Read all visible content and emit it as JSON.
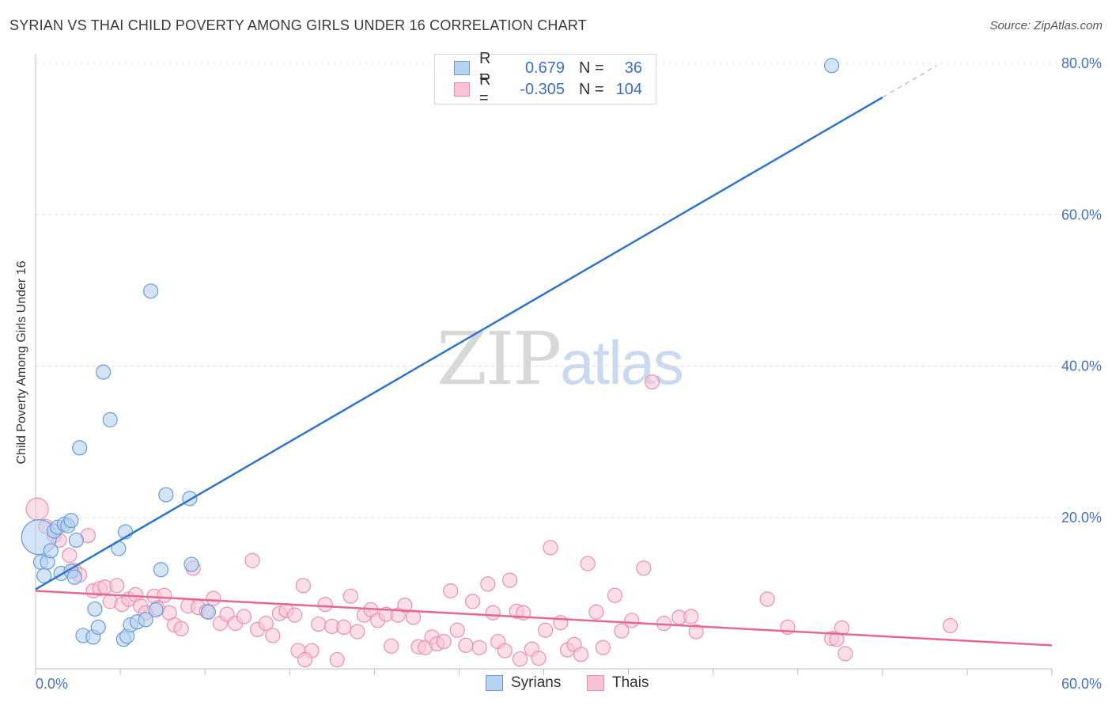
{
  "title": "SYRIAN VS THAI CHILD POVERTY AMONG GIRLS UNDER 16 CORRELATION CHART",
  "source": "Source: ZipAtlas.com",
  "watermark": {
    "part1": "ZIP",
    "part2": "atlas"
  },
  "legend": {
    "series1": {
      "r_label": "R =",
      "r_value": "0.679",
      "n_label": "N =",
      "n_value": "36"
    },
    "series2": {
      "r_label": "R =",
      "r_value": "-0.305",
      "n_label": "N =",
      "n_value": "104"
    }
  },
  "bottom_legend": {
    "series1": "Syrians",
    "series2": "Thais"
  },
  "colors": {
    "syrian_fill": "#b8d2f2",
    "syrian_stroke": "#6a9ad8",
    "syrian_line": "#2e74cf",
    "thai_fill": "#f9c3d5",
    "thai_stroke": "#eb8fb0",
    "thai_line": "#e5698f",
    "tick": "#4472c4",
    "grid": "#e2e2e2"
  },
  "chart_data": {
    "type": "scatter",
    "title": "SYRIAN VS THAI CHILD POVERTY AMONG GIRLS UNDER 16 CORRELATION CHART",
    "xlabel": "",
    "ylabel": "Child Poverty Among Girls Under 16",
    "xlim": [
      0,
      60
    ],
    "ylim": [
      0,
      80
    ],
    "x_tick_labels": [
      "0.0%",
      "60.0%"
    ],
    "y_ticks": [
      20,
      40,
      60,
      80
    ],
    "y_tick_labels": [
      "20.0%",
      "40.0%",
      "60.0%",
      "80.0%"
    ],
    "grid": true,
    "series": [
      {
        "name": "Syrians",
        "r": 0.679,
        "n": 36,
        "trend": {
          "x": [
            0,
            50
          ],
          "y": [
            10.5,
            75.5
          ],
          "dashed_x": [
            50,
            53.2
          ],
          "dashed_y": [
            75.5,
            79.7
          ]
        },
        "points": [
          [
            0.2,
            17.4,
            22
          ],
          [
            0.3,
            14.1,
            10
          ],
          [
            0.5,
            12.3,
            10
          ],
          [
            0.7,
            14.1,
            10
          ],
          [
            0.9,
            15.6,
            10
          ],
          [
            1.1,
            18.2,
            10
          ],
          [
            1.3,
            18.7,
            10
          ],
          [
            1.5,
            12.6,
            10
          ],
          [
            1.7,
            19.1,
            10
          ],
          [
            1.9,
            18.9,
            10
          ],
          [
            2.1,
            19.6,
            10
          ],
          [
            2.1,
            12.9,
            10
          ],
          [
            2.3,
            12.1,
            10
          ],
          [
            2.4,
            17.0,
            10
          ],
          [
            2.6,
            29.2,
            10
          ],
          [
            2.8,
            4.4,
            10
          ],
          [
            3.4,
            4.2,
            10
          ],
          [
            3.5,
            7.9,
            10
          ],
          [
            3.7,
            5.5,
            10
          ],
          [
            4.0,
            39.2,
            10
          ],
          [
            4.4,
            32.9,
            10
          ],
          [
            4.9,
            15.9,
            10
          ],
          [
            5.2,
            3.9,
            10
          ],
          [
            5.3,
            18.1,
            10
          ],
          [
            5.4,
            4.3,
            10
          ],
          [
            5.6,
            5.8,
            10
          ],
          [
            6.0,
            6.2,
            10
          ],
          [
            6.5,
            6.5,
            10
          ],
          [
            6.8,
            49.9,
            10
          ],
          [
            7.1,
            7.8,
            10
          ],
          [
            7.4,
            13.1,
            10
          ],
          [
            7.7,
            23.0,
            10
          ],
          [
            9.1,
            22.5,
            10
          ],
          [
            9.2,
            13.8,
            10
          ],
          [
            10.2,
            7.5,
            10
          ],
          [
            47.0,
            79.7,
            10
          ]
        ]
      },
      {
        "name": "Thais",
        "r": -0.305,
        "n": 104,
        "trend": {
          "x": [
            0,
            60
          ],
          "y": [
            10.3,
            3.1
          ]
        },
        "points": [
          [
            0.1,
            21.1,
            14
          ],
          [
            0.6,
            18.8,
            10
          ],
          [
            1.1,
            17.6,
            10
          ],
          [
            1.4,
            17.0,
            10
          ],
          [
            2.0,
            15.0,
            10
          ],
          [
            2.3,
            13.0,
            10
          ],
          [
            2.6,
            12.4,
            10
          ],
          [
            3.1,
            17.6,
            10
          ],
          [
            3.4,
            10.3,
            10
          ],
          [
            3.8,
            10.6,
            10
          ],
          [
            4.1,
            10.8,
            10
          ],
          [
            4.4,
            8.9,
            10
          ],
          [
            4.8,
            11.0,
            10
          ],
          [
            5.1,
            8.5,
            10
          ],
          [
            5.5,
            9.2,
            10
          ],
          [
            5.9,
            9.8,
            10
          ],
          [
            6.2,
            8.3,
            10
          ],
          [
            6.5,
            7.4,
            10
          ],
          [
            7.0,
            9.6,
            10
          ],
          [
            7.2,
            8.0,
            10
          ],
          [
            7.6,
            9.7,
            10
          ],
          [
            7.9,
            7.4,
            10
          ],
          [
            8.2,
            5.8,
            10
          ],
          [
            8.6,
            5.3,
            10
          ],
          [
            9.0,
            8.3,
            10
          ],
          [
            9.3,
            13.3,
            10
          ],
          [
            9.6,
            8.1,
            10
          ],
          [
            10.1,
            7.6,
            10
          ],
          [
            10.5,
            9.3,
            10
          ],
          [
            10.9,
            6.0,
            10
          ],
          [
            11.3,
            7.2,
            10
          ],
          [
            11.8,
            6.0,
            10
          ],
          [
            12.3,
            6.9,
            10
          ],
          [
            12.8,
            14.3,
            10
          ],
          [
            13.1,
            5.2,
            10
          ],
          [
            13.6,
            6.0,
            10
          ],
          [
            14.0,
            4.4,
            10
          ],
          [
            14.4,
            7.3,
            10
          ],
          [
            14.8,
            7.7,
            10
          ],
          [
            15.3,
            7.1,
            10
          ],
          [
            15.5,
            2.4,
            10
          ],
          [
            15.8,
            11.0,
            10
          ],
          [
            16.3,
            2.4,
            10
          ],
          [
            16.7,
            5.9,
            10
          ],
          [
            17.1,
            8.5,
            10
          ],
          [
            17.5,
            5.6,
            10
          ],
          [
            17.8,
            1.2,
            10
          ],
          [
            18.2,
            5.5,
            10
          ],
          [
            18.6,
            9.6,
            10
          ],
          [
            19.0,
            4.9,
            10
          ],
          [
            19.4,
            7.1,
            10
          ],
          [
            19.8,
            7.8,
            10
          ],
          [
            20.2,
            6.4,
            10
          ],
          [
            20.7,
            7.2,
            10
          ],
          [
            21.0,
            3.0,
            10
          ],
          [
            21.4,
            7.1,
            10
          ],
          [
            21.8,
            8.4,
            10
          ],
          [
            22.3,
            6.8,
            10
          ],
          [
            22.6,
            2.9,
            10
          ],
          [
            23.0,
            2.8,
            10
          ],
          [
            23.4,
            4.2,
            10
          ],
          [
            23.7,
            3.3,
            10
          ],
          [
            24.1,
            3.6,
            10
          ],
          [
            24.5,
            10.3,
            10
          ],
          [
            24.9,
            5.1,
            10
          ],
          [
            25.4,
            3.1,
            10
          ],
          [
            25.8,
            8.9,
            10
          ],
          [
            26.2,
            2.8,
            10
          ],
          [
            26.7,
            11.2,
            10
          ],
          [
            27.0,
            7.4,
            10
          ],
          [
            27.3,
            3.6,
            10
          ],
          [
            27.7,
            2.4,
            10
          ],
          [
            28.0,
            11.7,
            10
          ],
          [
            28.4,
            7.6,
            10
          ],
          [
            28.8,
            7.4,
            10
          ],
          [
            29.3,
            2.6,
            10
          ],
          [
            29.7,
            1.4,
            10
          ],
          [
            30.1,
            5.1,
            10
          ],
          [
            30.4,
            16.0,
            10
          ],
          [
            31.0,
            6.1,
            10
          ],
          [
            31.4,
            2.5,
            10
          ],
          [
            31.8,
            3.2,
            10
          ],
          [
            32.2,
            1.9,
            10
          ],
          [
            32.6,
            13.9,
            10
          ],
          [
            33.1,
            7.5,
            10
          ],
          [
            33.5,
            2.8,
            10
          ],
          [
            34.2,
            9.7,
            10
          ],
          [
            34.6,
            5.0,
            10
          ],
          [
            35.2,
            6.4,
            10
          ],
          [
            35.9,
            13.3,
            10
          ],
          [
            36.4,
            37.9,
            10
          ],
          [
            37.1,
            6.0,
            10
          ],
          [
            38.0,
            6.8,
            10
          ],
          [
            38.7,
            6.9,
            10
          ],
          [
            39.0,
            4.9,
            10
          ],
          [
            43.2,
            9.2,
            10
          ],
          [
            44.4,
            5.5,
            10
          ],
          [
            47.0,
            4.0,
            10
          ],
          [
            47.3,
            3.9,
            10
          ],
          [
            47.6,
            5.4,
            10
          ],
          [
            47.8,
            2.0,
            10
          ],
          [
            54.0,
            5.7,
            10
          ],
          [
            15.9,
            1.2,
            10
          ],
          [
            28.6,
            1.3,
            10
          ]
        ]
      }
    ]
  }
}
